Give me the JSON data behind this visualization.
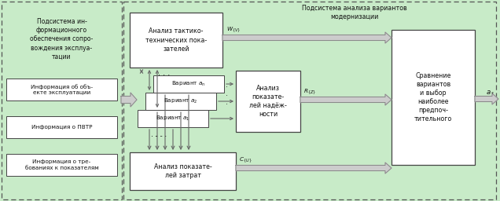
{
  "fig_width": 6.36,
  "fig_height": 2.56,
  "dpi": 100,
  "bg_green": "#c8ebc8",
  "box_fill": "white",
  "box_edge": "#444444",
  "dash_color": "#555555",
  "arrow_gray": "#aaaaaa",
  "arrow_dark": "#666666",
  "text_color": "#111111",
  "fs_small": 5.2,
  "fs_med": 5.8,
  "fs_large": 6.5,
  "left_title": "Подсистема ин-\nформационного\nобеспечения сопро-\nвождения эксплуа-\nтации",
  "info_box1": "Информация об объ-\nекте эксплуатации",
  "info_box2": "Информация о ПВТР",
  "info_box3": "Информация о тре-\nбованиях к показателям",
  "right_title": "Подсистема анализа вариантов\nмодернизации",
  "block_tactic": "Анализ тактико-\nтехнических пока-\nзателей",
  "block_variant_n": "Вариант $a_n$",
  "block_variant_2": "Вариант $a_2$",
  "block_variant_1": "Вариант $a_1$",
  "block_reliability": "Анализ\nпоказате-\nлей надёж-\nности",
  "block_cost": "Анализ показате-\nлей затрат",
  "block_compare": "Сравнение\nвариантов\nи выбор\nнаиболее\nпредпоч-\nтительного",
  "lbl_W": "$W_{\\{V\\}}$",
  "lbl_R": "$R_{\\{Z\\}}$",
  "lbl_C": "$C_{\\{U\\}}$",
  "lbl_out": "$a_*$"
}
